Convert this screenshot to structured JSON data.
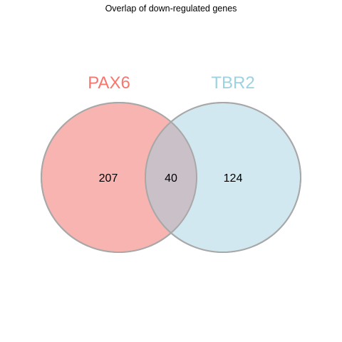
{
  "title": "Overlap of down-regulated genes",
  "sets": [
    {
      "name": "PAX6",
      "color": "#F8766D",
      "fill": "#F8B4B0"
    },
    {
      "name": "TBR2",
      "color": "#9DD2E2",
      "fill": "#D1E8F0"
    }
  ],
  "counts": {
    "a_only": "207",
    "overlap": "40",
    "b_only": "124"
  },
  "colors": {
    "outline": "#A8A8A8",
    "overlap_fill": "#CAC0C8"
  }
}
